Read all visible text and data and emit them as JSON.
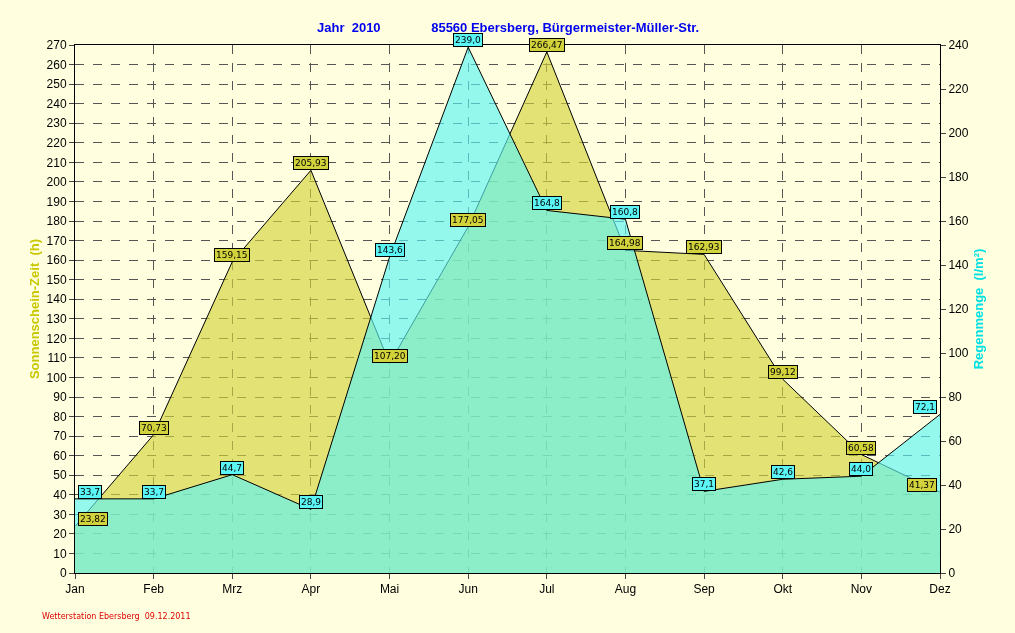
{
  "chart_data": {
    "type": "area",
    "title": "Jahr  2010",
    "subtitle": "85560 Ebersberg, Bürgermeister-Müller-Str.",
    "ylabel": "Sonnenschein-Zeit  (h)",
    "y2label": "Regenmenge  (l/m²)",
    "annotations": [
      "Wetterstation Ebersberg  09.12.2011"
    ],
    "categories": [
      "Jan",
      "Feb",
      "Mrz",
      "Apr",
      "Mai",
      "Jun",
      "Jul",
      "Aug",
      "Sep",
      "Okt",
      "Nov",
      "Dez"
    ],
    "series": [
      {
        "color": "#d2d23c",
        "values": [
          23.82,
          70.73,
          159.15,
          205.93,
          107.2,
          177.05,
          266.47,
          164.98,
          162.93,
          99.12,
          60.58,
          41.37
        ],
        "value_labels": [
          "23,82",
          "70,73",
          "159,15",
          "205,93",
          "107,20",
          "177,05",
          "266,47",
          "164,98",
          "162,93",
          "99,12",
          "60,58",
          "41,37"
        ]
      },
      {
        "color": "#5cf5f5",
        "axis": "y2",
        "values": [
          33.7,
          33.7,
          44.7,
          28.9,
          143.6,
          239.0,
          164.8,
          160.8,
          37.1,
          42.6,
          44.0,
          72.1
        ],
        "value_labels": [
          "33,7",
          "33,7",
          "44,7",
          "28,9",
          "143,6",
          "239,0",
          "164,8",
          "160,8",
          "37,1",
          "42,6",
          "44,0",
          "72,1"
        ]
      }
    ],
    "ylim": [
      0,
      270
    ],
    "yticks": [
      0,
      10,
      20,
      30,
      40,
      50,
      60,
      70,
      80,
      90,
      100,
      110,
      120,
      130,
      140,
      150,
      160,
      170,
      180,
      190,
      200,
      210,
      220,
      230,
      240,
      250,
      260,
      270
    ],
    "y2lim": [
      0,
      240
    ],
    "y2ticks": [
      0,
      20,
      40,
      60,
      80,
      100,
      120,
      140,
      160,
      180,
      200,
      220,
      240
    ],
    "grid": true
  }
}
